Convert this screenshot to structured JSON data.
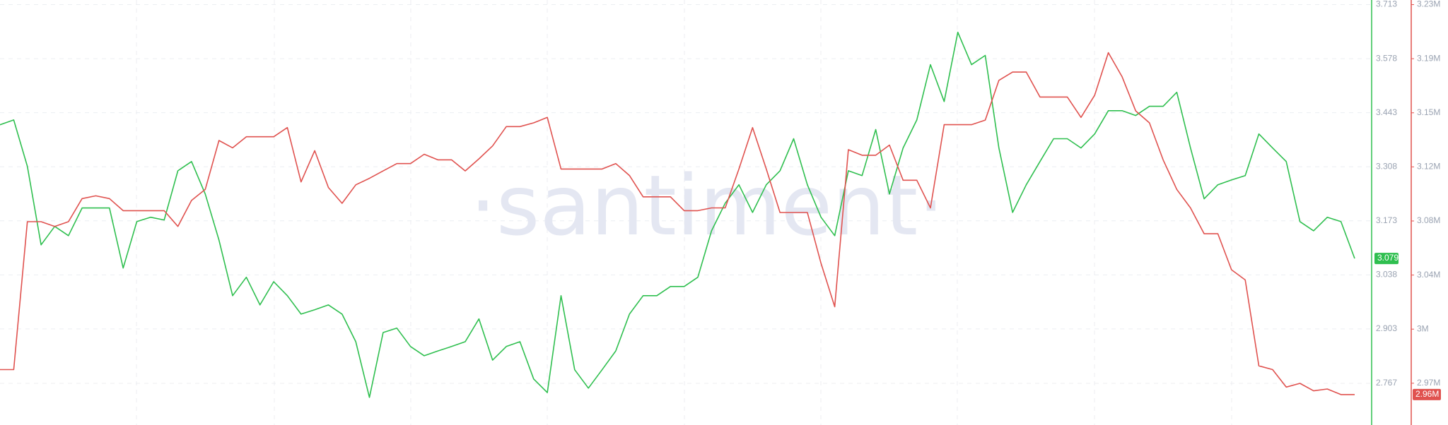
{
  "chart_data": {
    "type": "line",
    "watermark": "·santiment·",
    "grid": true,
    "ylim": [
      2.663,
      3.7245
    ],
    "yticks": [
      3.713,
      3.578,
      3.443,
      3.308,
      3.173,
      3.038,
      2.903,
      2.767
    ],
    "y2lim": [
      2936980,
      3233220
    ],
    "y2ticks": [
      {
        "value": 3230000,
        "label": "3.23M"
      },
      {
        "value": 3192300,
        "label": "3.19M"
      },
      {
        "value": 3154600,
        "label": "3.15M"
      },
      {
        "value": 3116900,
        "label": "3.12M"
      },
      {
        "value": 3079200,
        "label": "3.08M"
      },
      {
        "value": 3041500,
        "label": "3.04M"
      },
      {
        "value": 3003800,
        "label": "3M"
      },
      {
        "value": 2966100,
        "label": "2.97M"
      }
    ],
    "series": [
      {
        "color": "#2fbf4f",
        "current": 3.079,
        "values": [
          3.413,
          3.425,
          3.309,
          3.113,
          3.159,
          3.136,
          3.205,
          3.205,
          3.205,
          3.055,
          3.171,
          3.182,
          3.175,
          3.298,
          3.321,
          3.24,
          3.125,
          2.986,
          3.032,
          2.963,
          3.021,
          2.986,
          2.94,
          2.951,
          2.963,
          2.94,
          2.871,
          2.732,
          2.894,
          2.905,
          2.859,
          2.836,
          2.848,
          2.859,
          2.871,
          2.928,
          2.825,
          2.859,
          2.871,
          2.778,
          2.744,
          2.986,
          2.801,
          2.755,
          2.801,
          2.848,
          2.94,
          2.986,
          2.986,
          3.009,
          3.009,
          3.032,
          3.148,
          3.217,
          3.263,
          3.194,
          3.263,
          3.298,
          3.378,
          3.263,
          3.182,
          3.136,
          3.298,
          3.286,
          3.401,
          3.24,
          3.355,
          3.425,
          3.563,
          3.471,
          3.644,
          3.563,
          3.586,
          3.355,
          3.194,
          3.263,
          3.321,
          3.378,
          3.378,
          3.355,
          3.39,
          3.448,
          3.448,
          3.436,
          3.459,
          3.459,
          3.494,
          3.355,
          3.228,
          3.263,
          3.275,
          3.286,
          3.39,
          3.355,
          3.321,
          3.171,
          3.148,
          3.182,
          3.171,
          3.079
        ]
      },
      {
        "color": "#e0524f",
        "axis": "y2",
        "current": {
          "value": 2958200,
          "label": "2.96M"
        },
        "values": [
          2975600,
          2975600,
          3078700,
          3078700,
          3075400,
          3078700,
          3094800,
          3096700,
          3094800,
          3086400,
          3086400,
          3086400,
          3086400,
          3075400,
          3093500,
          3101200,
          3135300,
          3130200,
          3137900,
          3137900,
          3137900,
          3144300,
          3106400,
          3128200,
          3102500,
          3091500,
          3104400,
          3108900,
          3114100,
          3119200,
          3119200,
          3125700,
          3121800,
          3121800,
          3114100,
          3122500,
          3131500,
          3145000,
          3145000,
          3147600,
          3151400,
          3115400,
          3115400,
          3115400,
          3115400,
          3119200,
          3110900,
          3096000,
          3096000,
          3096000,
          3086400,
          3086400,
          3088300,
          3088300,
          3115400,
          3144300,
          3115400,
          3085100,
          3085100,
          3085100,
          3049700,
          3019400,
          3128900,
          3125000,
          3125000,
          3132100,
          3107600,
          3107600,
          3088300,
          3146300,
          3146300,
          3146300,
          3149500,
          3177200,
          3183000,
          3183000,
          3165600,
          3165600,
          3165600,
          3151400,
          3166900,
          3196500,
          3179800,
          3155900,
          3147600,
          3121800,
          3101200,
          3088300,
          3070300,
          3070300,
          3045200,
          3038100,
          2978200,
          2975600,
          2963400,
          2966000,
          2960800,
          2962100,
          2958200,
          2958200
        ]
      }
    ]
  }
}
